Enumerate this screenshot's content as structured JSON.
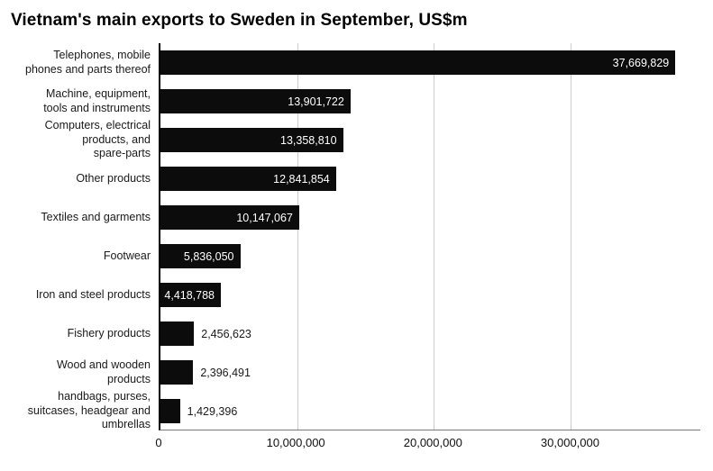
{
  "title": "Vietnam's main exports to Sweden in September, US$m",
  "chart_data": {
    "type": "bar",
    "orientation": "horizontal",
    "title": "Vietnam's main exports to Sweden in September, US$m",
    "categories": [
      "Telephones, mobile\nphones and parts thereof",
      "Machine, equipment,\ntools and instruments",
      "Computers, electrical\nproducts, and\nspare-parts",
      "Other products",
      "Textiles and garments",
      "Footwear",
      "Iron and steel products",
      "Fishery products",
      "Wood and wooden\nproducts",
      "handbags, purses,\nsuitcases, headgear and\numbrellas"
    ],
    "values": [
      37669829,
      13901722,
      13358810,
      12841854,
      10147067,
      5836050,
      4418788,
      2456623,
      2396491,
      1429396
    ],
    "value_labels": [
      "37,669,829",
      "13,901,722",
      "13,358,810",
      "12,841,854",
      "10,147,067",
      "5,836,050",
      "4,418,788",
      "2,456,623",
      "2,396,491",
      "1,429,396"
    ],
    "x_ticks": [
      0,
      10000000,
      20000000,
      30000000
    ],
    "x_tick_labels": [
      "0",
      "10,000,000",
      "20,000,000",
      "30,000,000"
    ],
    "xlim": [
      0,
      39500000
    ],
    "xlabel": "",
    "ylabel": "",
    "grid": true,
    "legend": "none",
    "bar_color": "#0c0c0c",
    "grid_color": "#cccccc",
    "value_label_inside_color": "#ffffff",
    "value_label_outside_color": "#1a1a1a"
  }
}
